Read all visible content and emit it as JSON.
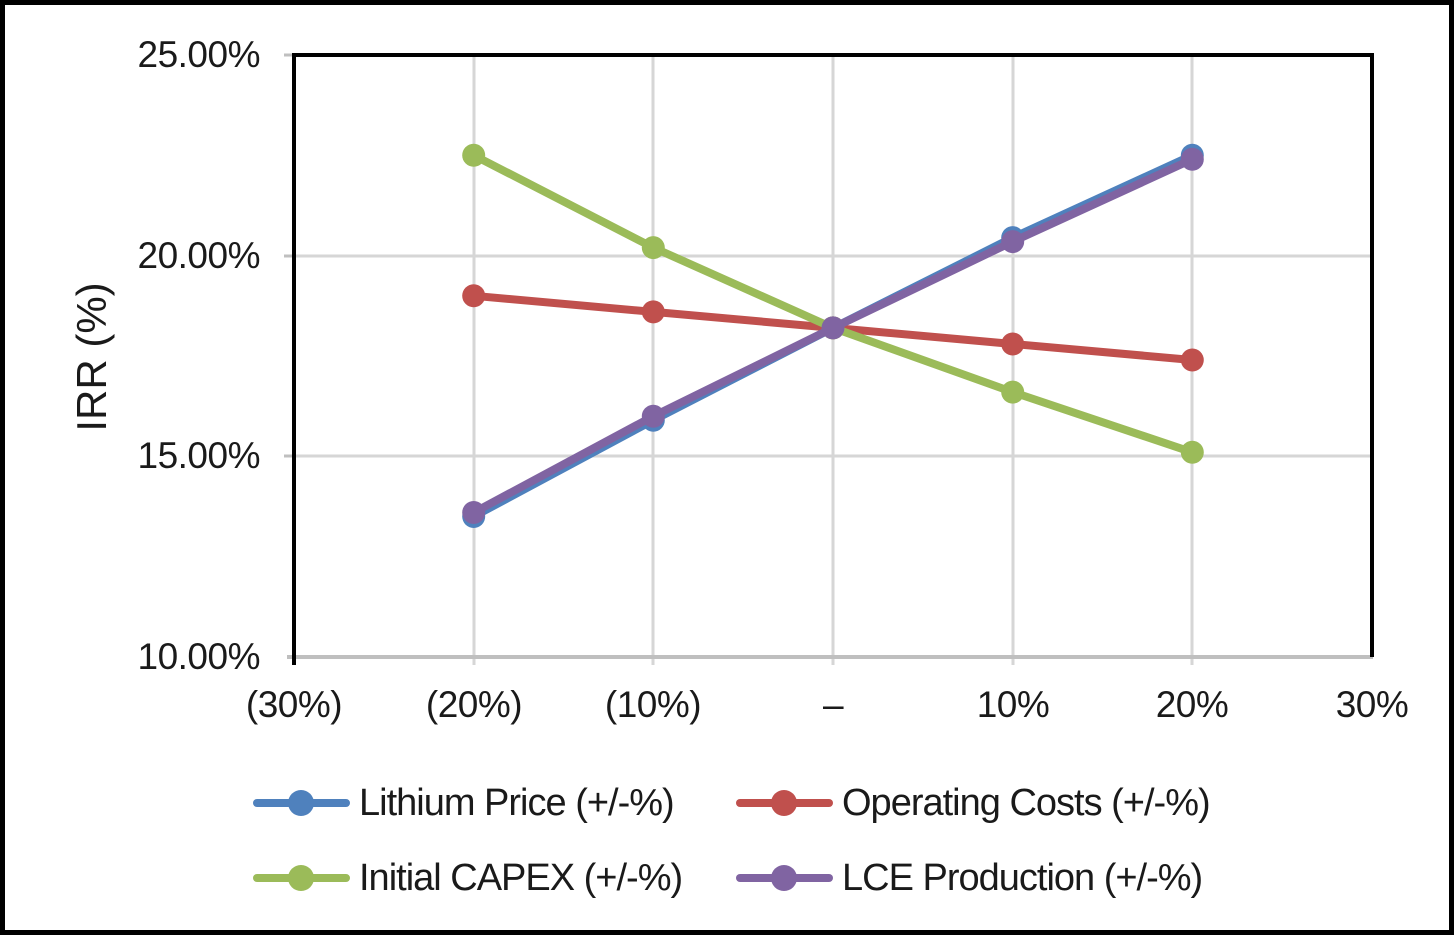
{
  "chart_data": {
    "type": "line",
    "title": "",
    "xlabel": "",
    "ylabel": "IRR (%)",
    "xlim": [
      -30,
      30
    ],
    "ylim": [
      10,
      25
    ],
    "x_ticks": [
      -30,
      -20,
      -10,
      0,
      10,
      20,
      30
    ],
    "x_tick_labels": [
      "(30%)",
      "(20%)",
      "(10%)",
      "–",
      "10%",
      "20%",
      "30%"
    ],
    "y_ticks_top_to_bottom": [
      25,
      20,
      15,
      10
    ],
    "y_tick_labels": [
      "25.00%",
      "20.00%",
      "15.00%",
      "10.00%"
    ],
    "grid": true,
    "legend_position": "bottom",
    "x": [
      -20,
      -10,
      0,
      10,
      20
    ],
    "series": [
      {
        "name": "Lithium Price (+/-%)",
        "color": "#4F81BD",
        "values": [
          13.5,
          15.9,
          18.2,
          20.45,
          22.5
        ]
      },
      {
        "name": "Operating Costs (+/-%)",
        "color": "#C0504D",
        "values": [
          19.0,
          18.6,
          18.2,
          17.8,
          17.4
        ]
      },
      {
        "name": "Initial CAPEX (+/-%)",
        "color": "#9BBB59",
        "values": [
          22.5,
          20.2,
          18.2,
          16.6,
          15.1
        ]
      },
      {
        "name": "LCE Production (+/-%)",
        "color": "#8064A2",
        "values": [
          13.6,
          16.0,
          18.2,
          20.35,
          22.4
        ]
      }
    ],
    "base_case_irr": 18.2
  },
  "colors": {
    "gridline": "#D6D6D6",
    "axis_line": "#BFBFBF",
    "plot_border": "#000000",
    "outer_border": "#000000",
    "background": "#FFFFFF"
  }
}
